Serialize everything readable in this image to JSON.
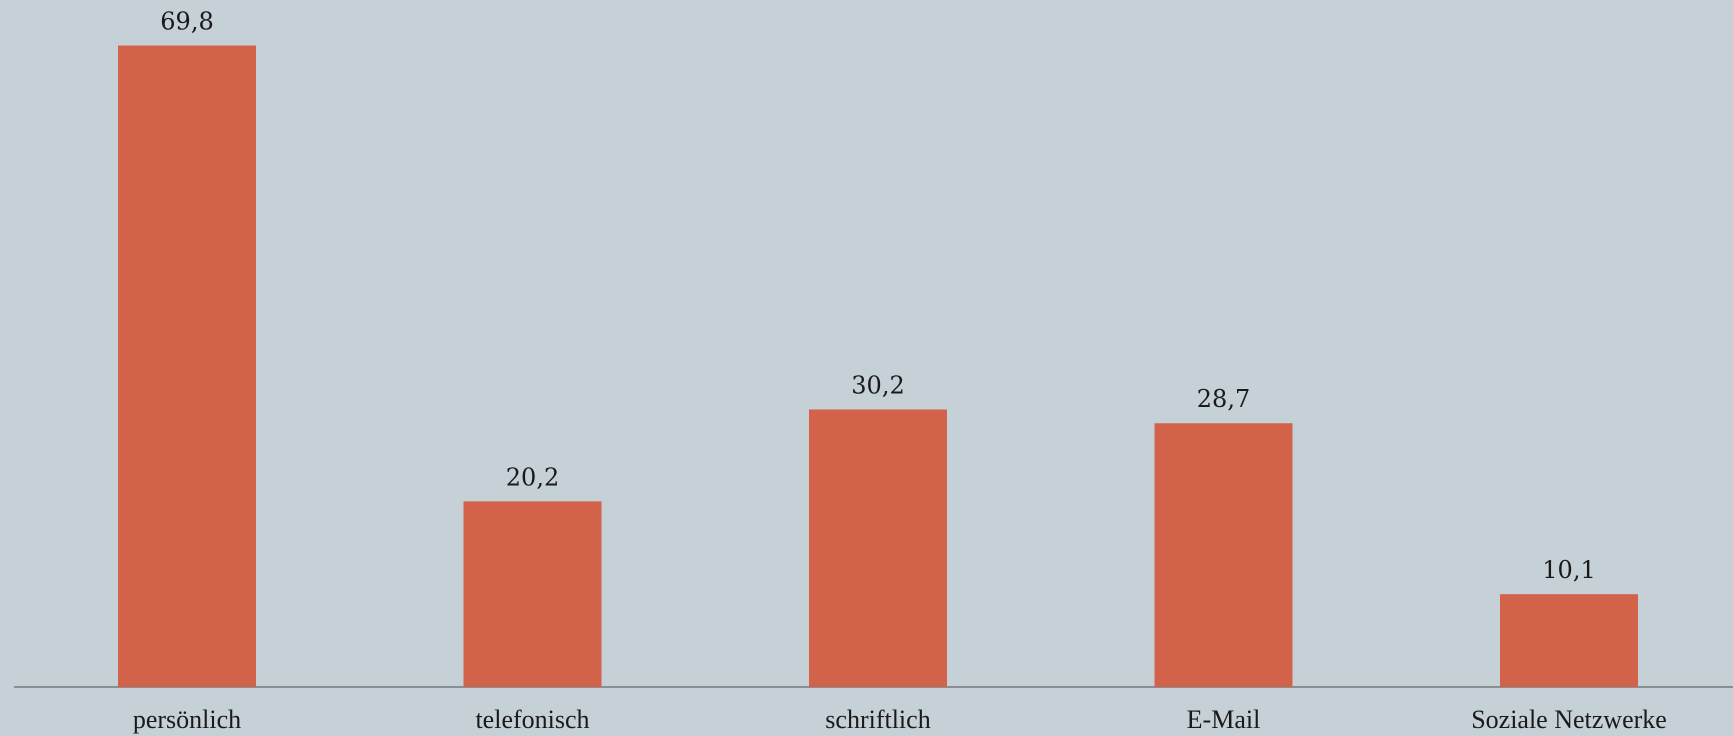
{
  "chart_data": {
    "type": "bar",
    "categories": [
      "persönlich",
      "telefonisch",
      "schriftlich",
      "E-Mail",
      "Soziale Netzwerke"
    ],
    "values": [
      69.8,
      20.2,
      30.2,
      28.7,
      10.1
    ],
    "value_labels": [
      "69,8",
      "20,2",
      "30,2",
      "28,7",
      "10,1"
    ],
    "title": "",
    "xlabel": "",
    "ylabel": "",
    "ylim": [
      0,
      75
    ],
    "grid": false,
    "legend": "none",
    "colors": {
      "bar": "#d2634a",
      "background": "#c5d0d7",
      "axis": "#8a8f94",
      "text": "#1a1a1a"
    }
  }
}
